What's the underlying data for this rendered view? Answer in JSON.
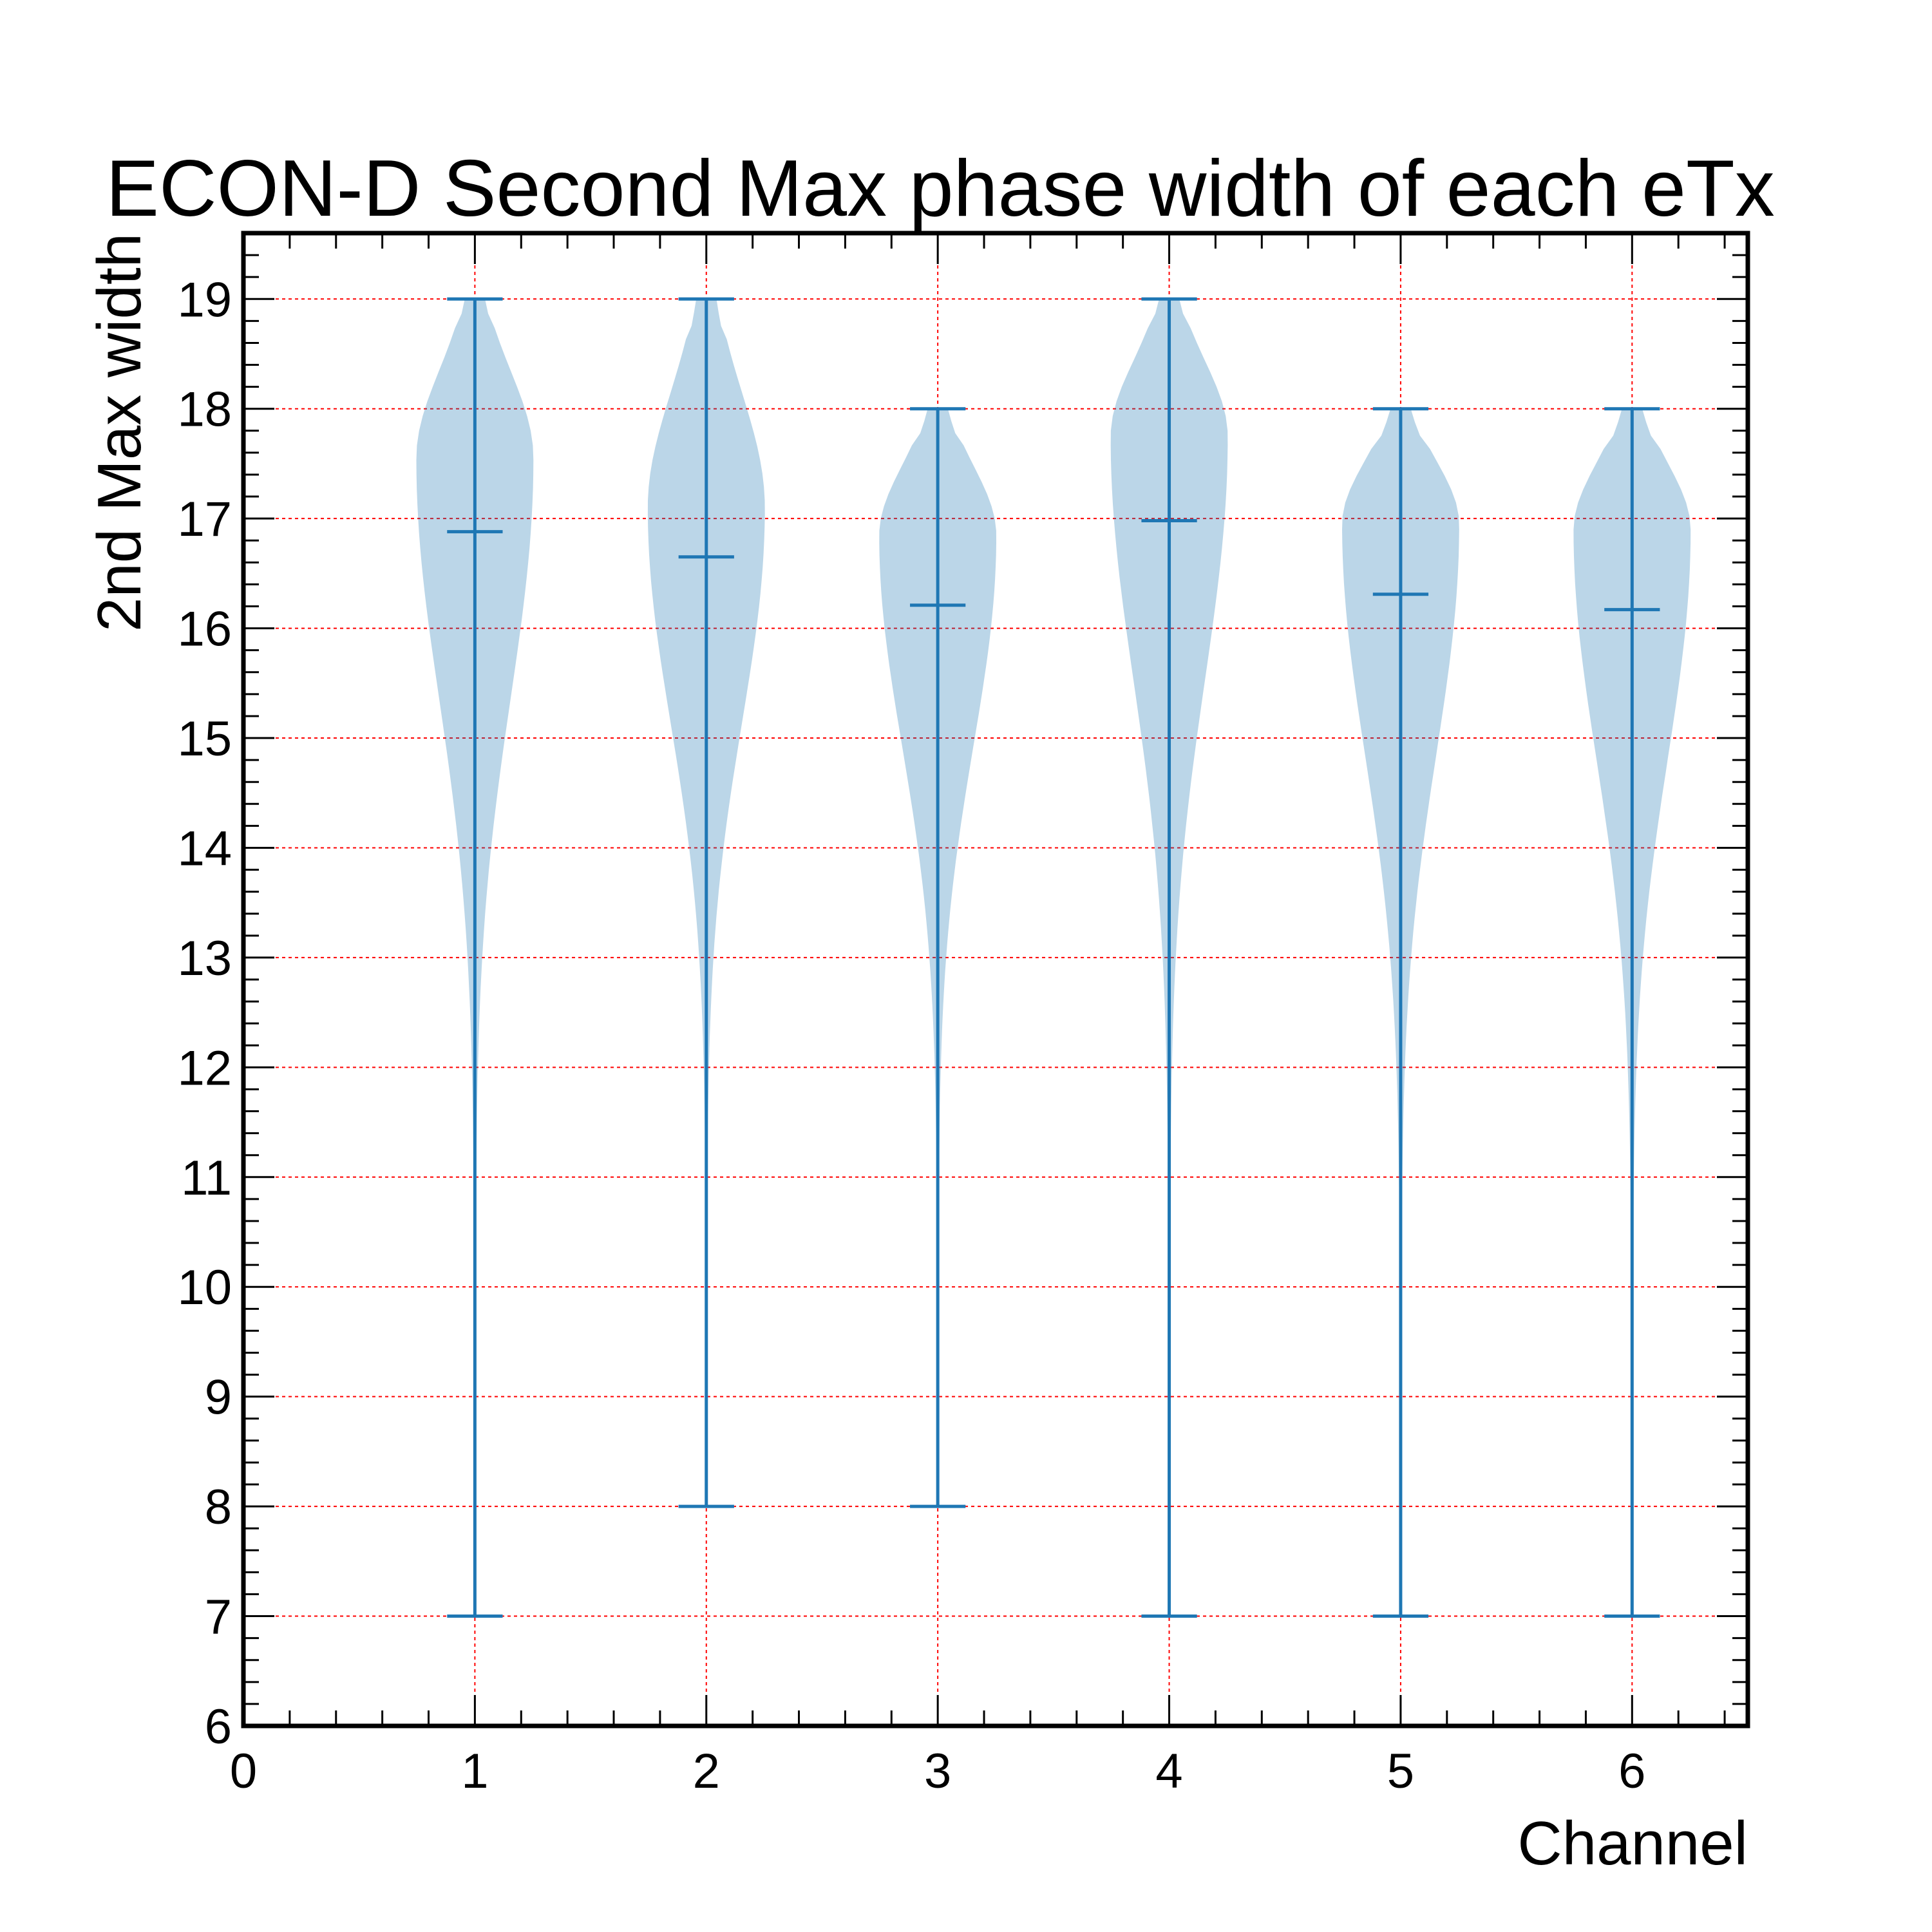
{
  "chart_data": {
    "type": "violin",
    "title": "ECON-D Second Max phase width of each eTx",
    "xlabel": "Channel",
    "ylabel": "2nd Max width",
    "xlim": [
      0,
      6.5
    ],
    "ylim": [
      6,
      19.6
    ],
    "x_ticks": [
      0,
      1,
      2,
      3,
      4,
      5,
      6
    ],
    "y_ticks": [
      6,
      7,
      8,
      9,
      10,
      11,
      12,
      13,
      14,
      15,
      16,
      17,
      18,
      19
    ],
    "grid": true,
    "colors": {
      "violin_fill": "#1f77b4",
      "violin_stroke": "#1f77b4",
      "grid": "#ff0000",
      "axis": "#000000"
    },
    "violins": [
      {
        "x": 1,
        "min": 7,
        "max": 19,
        "mean": 16.88,
        "mode": 17.55,
        "halfwidth": 0.25
      },
      {
        "x": 2,
        "min": 8,
        "max": 19,
        "mean": 16.65,
        "mode": 17.1,
        "halfwidth": 0.25
      },
      {
        "x": 3,
        "min": 8,
        "max": 18,
        "mean": 16.21,
        "mode": 16.85,
        "halfwidth": 0.25
      },
      {
        "x": 4,
        "min": 7,
        "max": 19,
        "mean": 16.98,
        "mode": 17.75,
        "halfwidth": 0.25
      },
      {
        "x": 5,
        "min": 7,
        "max": 18,
        "mean": 16.31,
        "mode": 16.95,
        "halfwidth": 0.25
      },
      {
        "x": 6,
        "min": 7,
        "max": 18,
        "mean": 16.17,
        "mode": 16.9,
        "halfwidth": 0.25
      }
    ]
  }
}
